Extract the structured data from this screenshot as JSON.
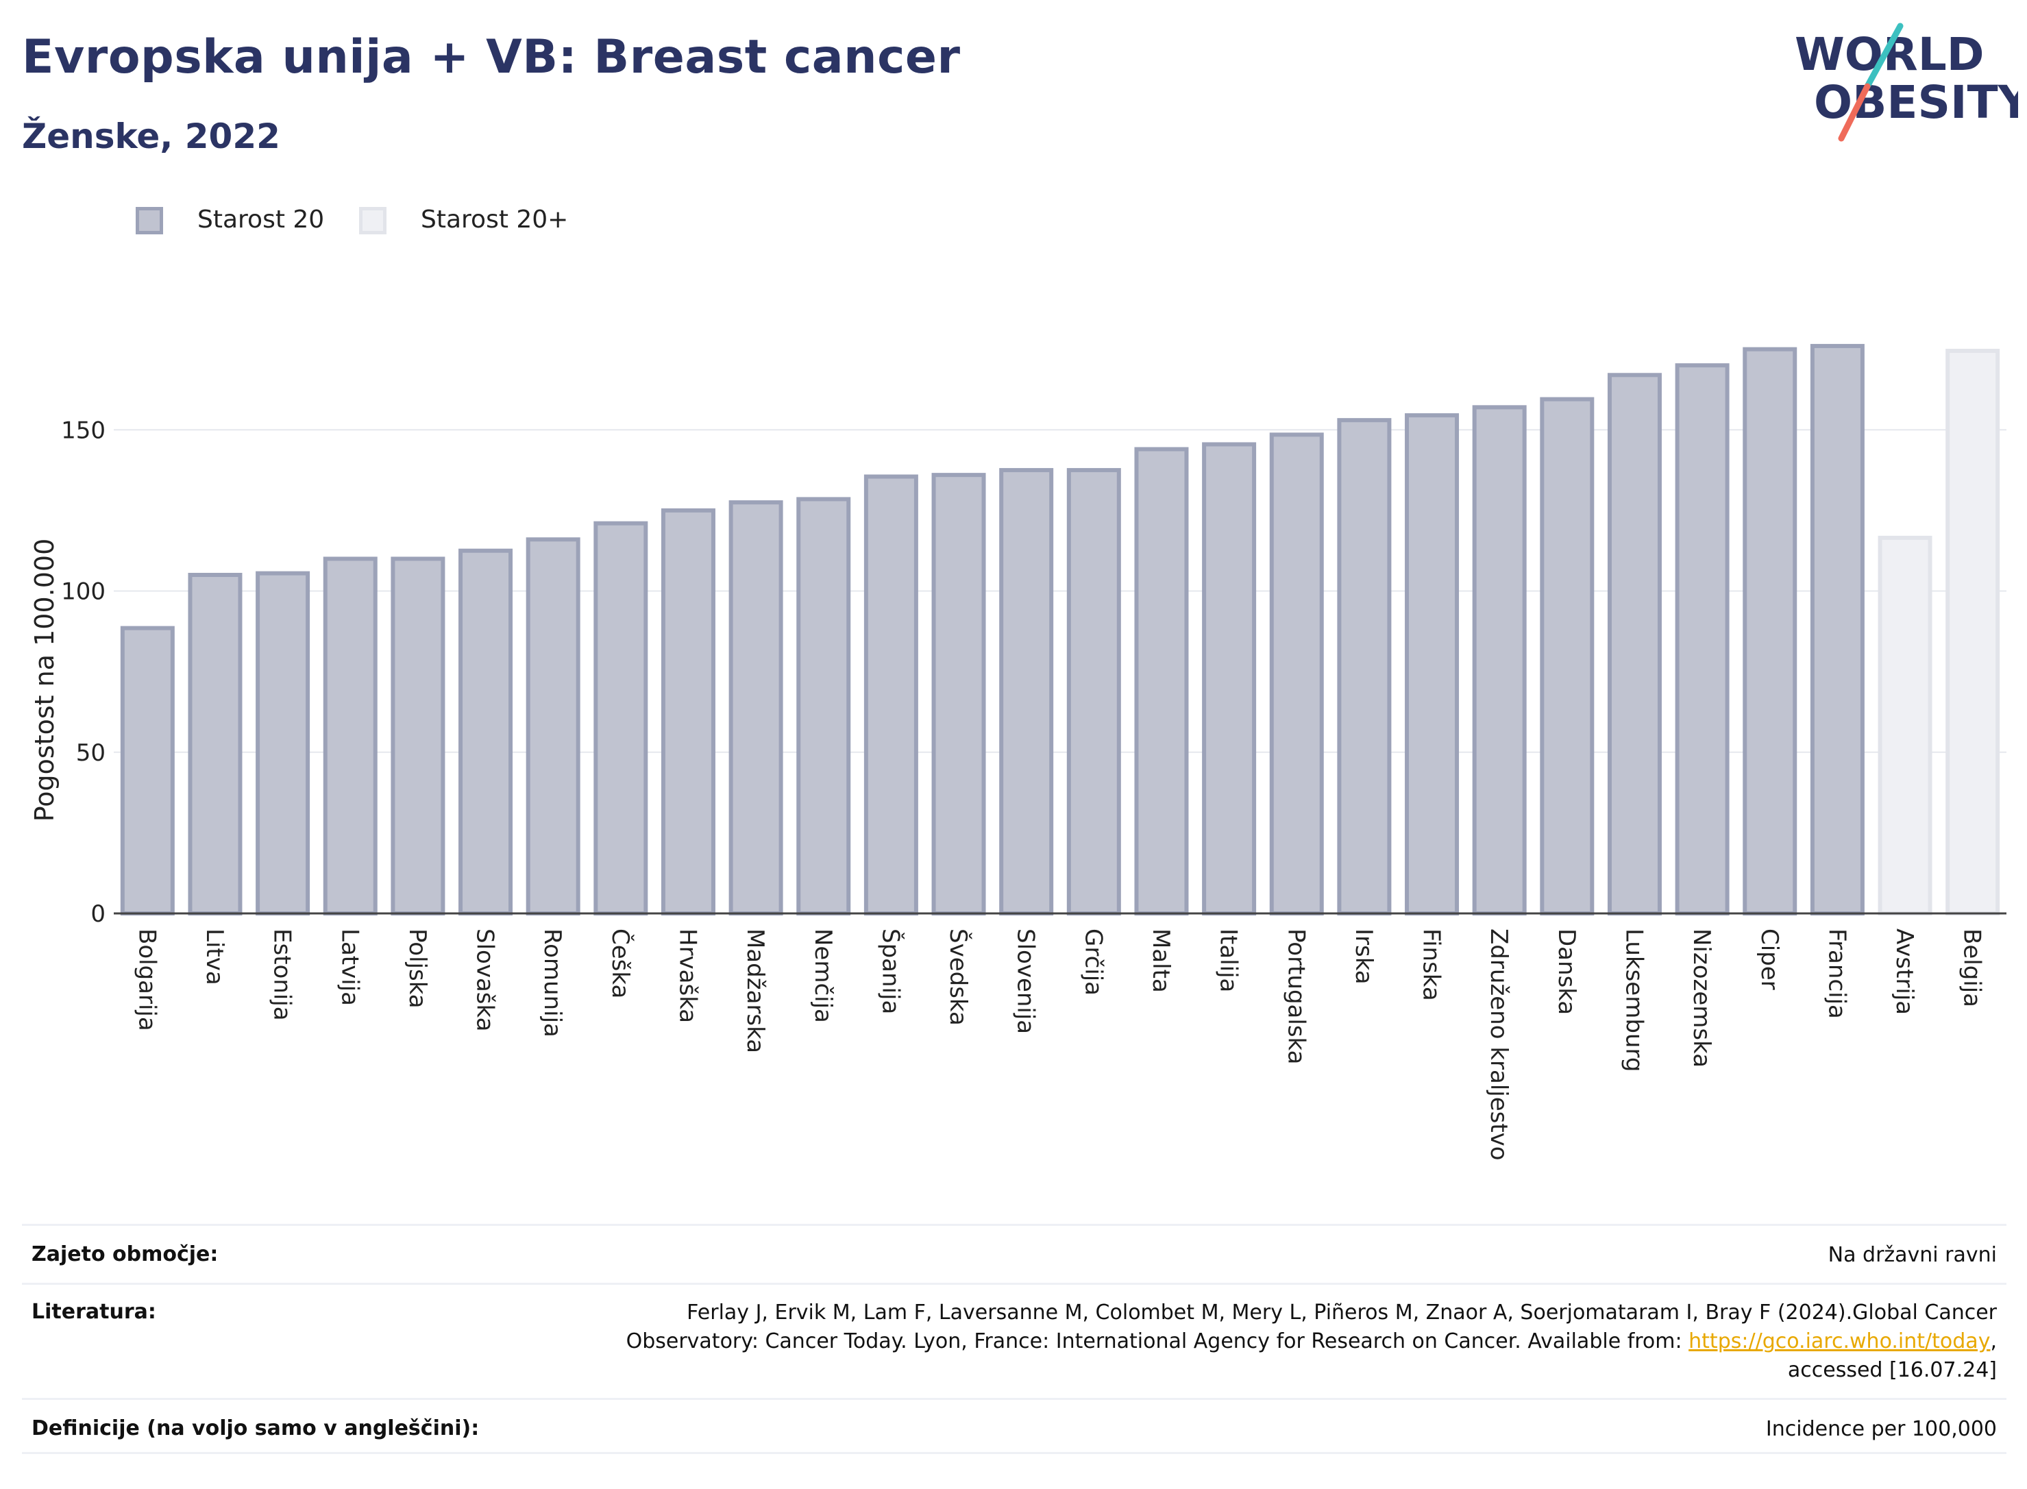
{
  "header": {
    "title": "Evropska unija + VB: Breast cancer",
    "subtitle": "Ženske, 2022",
    "logo_line1": "WORLD",
    "logo_line2": "OBESITY"
  },
  "colors": {
    "series1_fill": "#c0c3d0",
    "series1_stroke": "#9ca2b8",
    "series2_fill": "#eff0f4",
    "series2_stroke": "#e2e4ea",
    "brand_navy": "#2b3464",
    "logo_teal": "#3cc0c0",
    "logo_red": "#ef6b5a",
    "link": "#e8a800"
  },
  "chart_data": {
    "type": "bar",
    "ylabel": "Pogostost na 100.000",
    "ylim": [
      0,
      183
    ],
    "yticks": [
      0,
      50,
      100,
      150
    ],
    "grid": true,
    "legend_position": "top-left",
    "legend": [
      {
        "name": "Starost 20",
        "key": "series1"
      },
      {
        "name": "Starost 20+",
        "key": "series2"
      }
    ],
    "categories": [
      "Bolgarija",
      "Litva",
      "Estonija",
      "Latvija",
      "Poljska",
      "Slovaška",
      "Romunija",
      "Češka",
      "Hrvaška",
      "Madžarska",
      "Nemčija",
      "Španija",
      "Švedska",
      "Slovenija",
      "Grčija",
      "Malta",
      "Italija",
      "Portugalska",
      "Irska",
      "Finska",
      "Združeno kraljestvo",
      "Danska",
      "Luksemburg",
      "Nizozemska",
      "Ciper",
      "Francija",
      "Avstrija",
      "Belgija"
    ],
    "values": [
      88.5,
      105,
      105.5,
      110,
      110,
      112.5,
      116,
      121,
      125,
      127.5,
      128.5,
      135.5,
      136,
      137.5,
      137.5,
      144,
      145.5,
      148.5,
      153,
      154.5,
      157,
      159.5,
      167,
      170,
      175,
      176,
      116.5,
      174.5
    ],
    "series_index": [
      0,
      0,
      0,
      0,
      0,
      0,
      0,
      0,
      0,
      0,
      0,
      0,
      0,
      0,
      0,
      0,
      0,
      0,
      0,
      0,
      0,
      0,
      0,
      0,
      0,
      0,
      1,
      1
    ]
  },
  "footer": {
    "rows": [
      {
        "label": "Zajeto območje:",
        "lines": [
          "Na državni ravni"
        ]
      },
      {
        "label": "Literatura:",
        "lines": [
          "Ferlay J, Ervik M, Lam F, Laversanne M, Colombet M, Mery L, Piñeros M, Znaor A, Soerjomataram I, Bray F (2024).Global Cancer",
          "Observatory: Cancer Today. Lyon, France: International Agency for Research on Cancer. Available from: ",
          "https://gco.iarc.who.int/today",
          ",",
          "accessed [16.07.24]"
        ]
      },
      {
        "label": "Definicije (na voljo samo v angleščini):",
        "lines": [
          "Incidence per 100,000"
        ]
      }
    ]
  }
}
